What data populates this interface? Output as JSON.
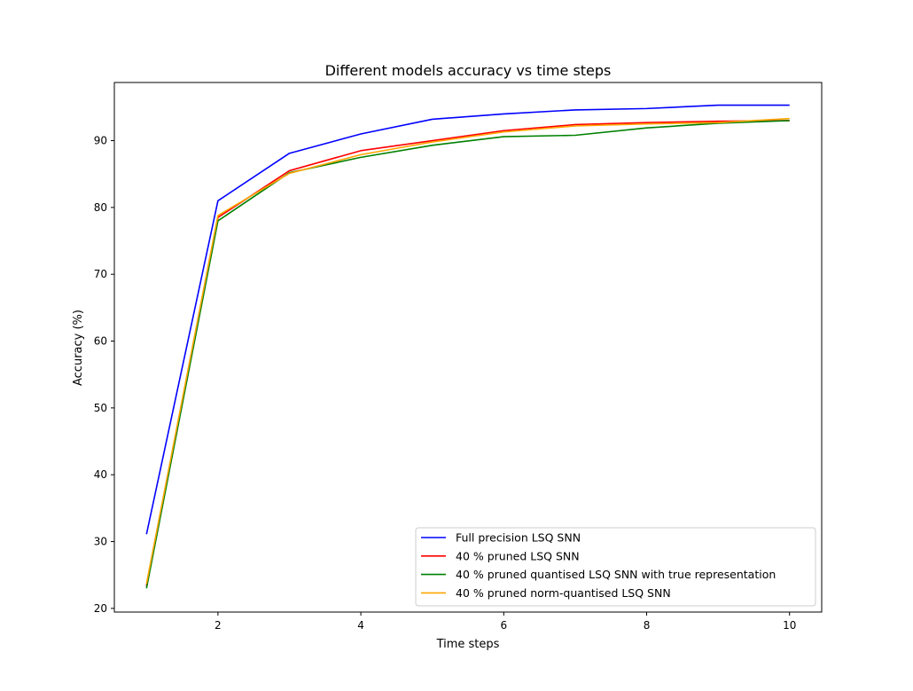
{
  "chart_data": {
    "type": "line",
    "title": "Different models accuracy vs time steps",
    "xlabel": "Time steps",
    "ylabel": "Accuracy (%)",
    "xlim": [
      0.55,
      10.45
    ],
    "ylim": [
      19.45,
      98.7
    ],
    "xticks": [
      2,
      4,
      6,
      8,
      10
    ],
    "yticks": [
      20,
      30,
      40,
      50,
      60,
      70,
      80,
      90
    ],
    "grid": false,
    "legend_position": "lower right",
    "x": [
      1,
      2,
      3,
      4,
      5,
      6,
      7,
      8,
      9,
      10
    ],
    "series": [
      {
        "name": "Full precision LSQ SNN",
        "color": "#0000ff",
        "values": [
          31.1,
          81.0,
          88.1,
          91.0,
          93.2,
          94.0,
          94.6,
          94.8,
          95.3,
          95.3
        ]
      },
      {
        "name": "40 % pruned LSQ SNN",
        "color": "#ff0000",
        "values": [
          23.3,
          78.5,
          85.5,
          88.5,
          90.0,
          91.5,
          92.4,
          92.7,
          92.9,
          93.0
        ]
      },
      {
        "name": "40 % pruned quantised LSQ SNN with true representation",
        "color": "#008000",
        "values": [
          23.0,
          78.0,
          85.2,
          87.5,
          89.3,
          90.6,
          90.8,
          91.9,
          92.6,
          93.0
        ]
      },
      {
        "name": "40 % pruned norm-quantised LSQ SNN",
        "color": "#ffa500",
        "values": [
          23.7,
          78.8,
          85.1,
          87.9,
          89.8,
          91.3,
          92.2,
          92.5,
          92.7,
          93.3
        ]
      }
    ]
  }
}
